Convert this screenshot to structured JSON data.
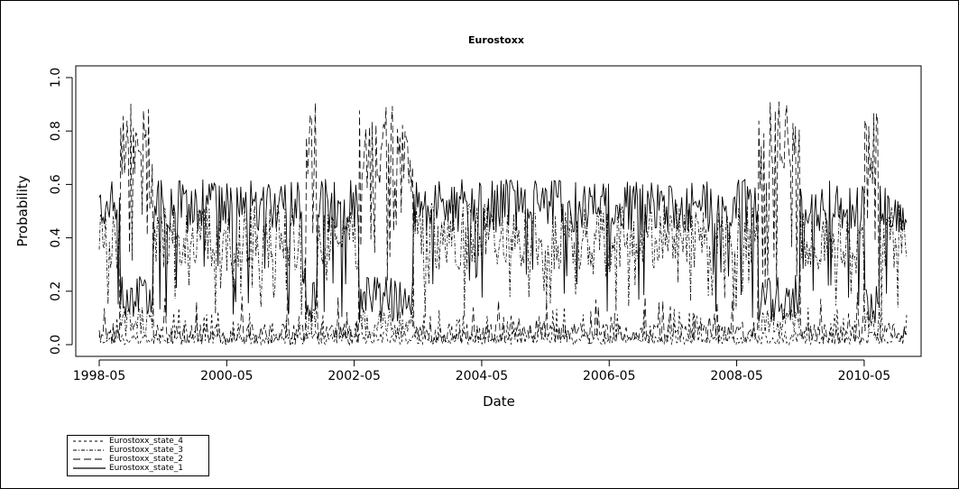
{
  "chart_data": {
    "type": "line",
    "title": "Eurostoxx",
    "xlabel": "Date",
    "ylabel": "Probability",
    "x_ticks": [
      "1998-05",
      "2000-05",
      "2002-05",
      "2004-05",
      "2006-05",
      "2008-05",
      "2010-05"
    ],
    "y_ticks": [
      "0.0",
      "0.2",
      "0.4",
      "0.6",
      "0.8",
      "1.0"
    ],
    "ylim": [
      0,
      1
    ],
    "x_start": "1998-05",
    "x_end": "2011-01",
    "n_points": 640,
    "grid": false,
    "legend_position": "bottom-left",
    "series": [
      {
        "name": "Eurostoxx_state_4",
        "dash": "3,3",
        "level": "low"
      },
      {
        "name": "Eurostoxx_state_3",
        "dash": "4,2,1,2",
        "level": "mid"
      },
      {
        "name": "Eurostoxx_state_2",
        "dash": "8,4",
        "level": "mid"
      },
      {
        "name": "Eurostoxx_state_1",
        "dash": "",
        "level": "high"
      }
    ],
    "high_state_episodes": [
      {
        "start": "1998-09",
        "end": "1999-03",
        "value": 0.9
      },
      {
        "start": "2001-08",
        "end": "2001-10",
        "value": 0.9
      },
      {
        "start": "2002-06",
        "end": "2003-04",
        "value": 0.9
      },
      {
        "start": "2008-09",
        "end": "2009-05",
        "value": 0.9
      },
      {
        "start": "2010-05",
        "end": "2010-08",
        "value": 0.9
      }
    ]
  }
}
